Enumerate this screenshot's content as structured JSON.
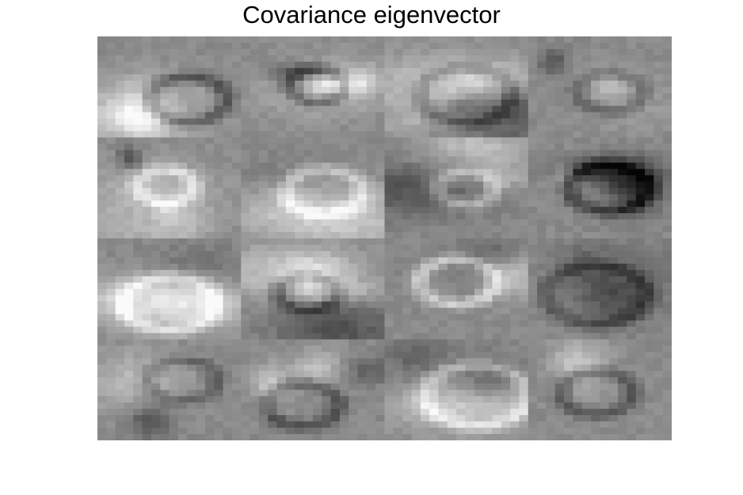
{
  "figure": {
    "title": "Covariance eigenvector"
  },
  "image": {
    "description_id": "eigenvector-grid",
    "grid_rows": 4,
    "grid_cols": 4,
    "colormap": "grayscale",
    "background_gray": "#8a8a8a"
  }
}
